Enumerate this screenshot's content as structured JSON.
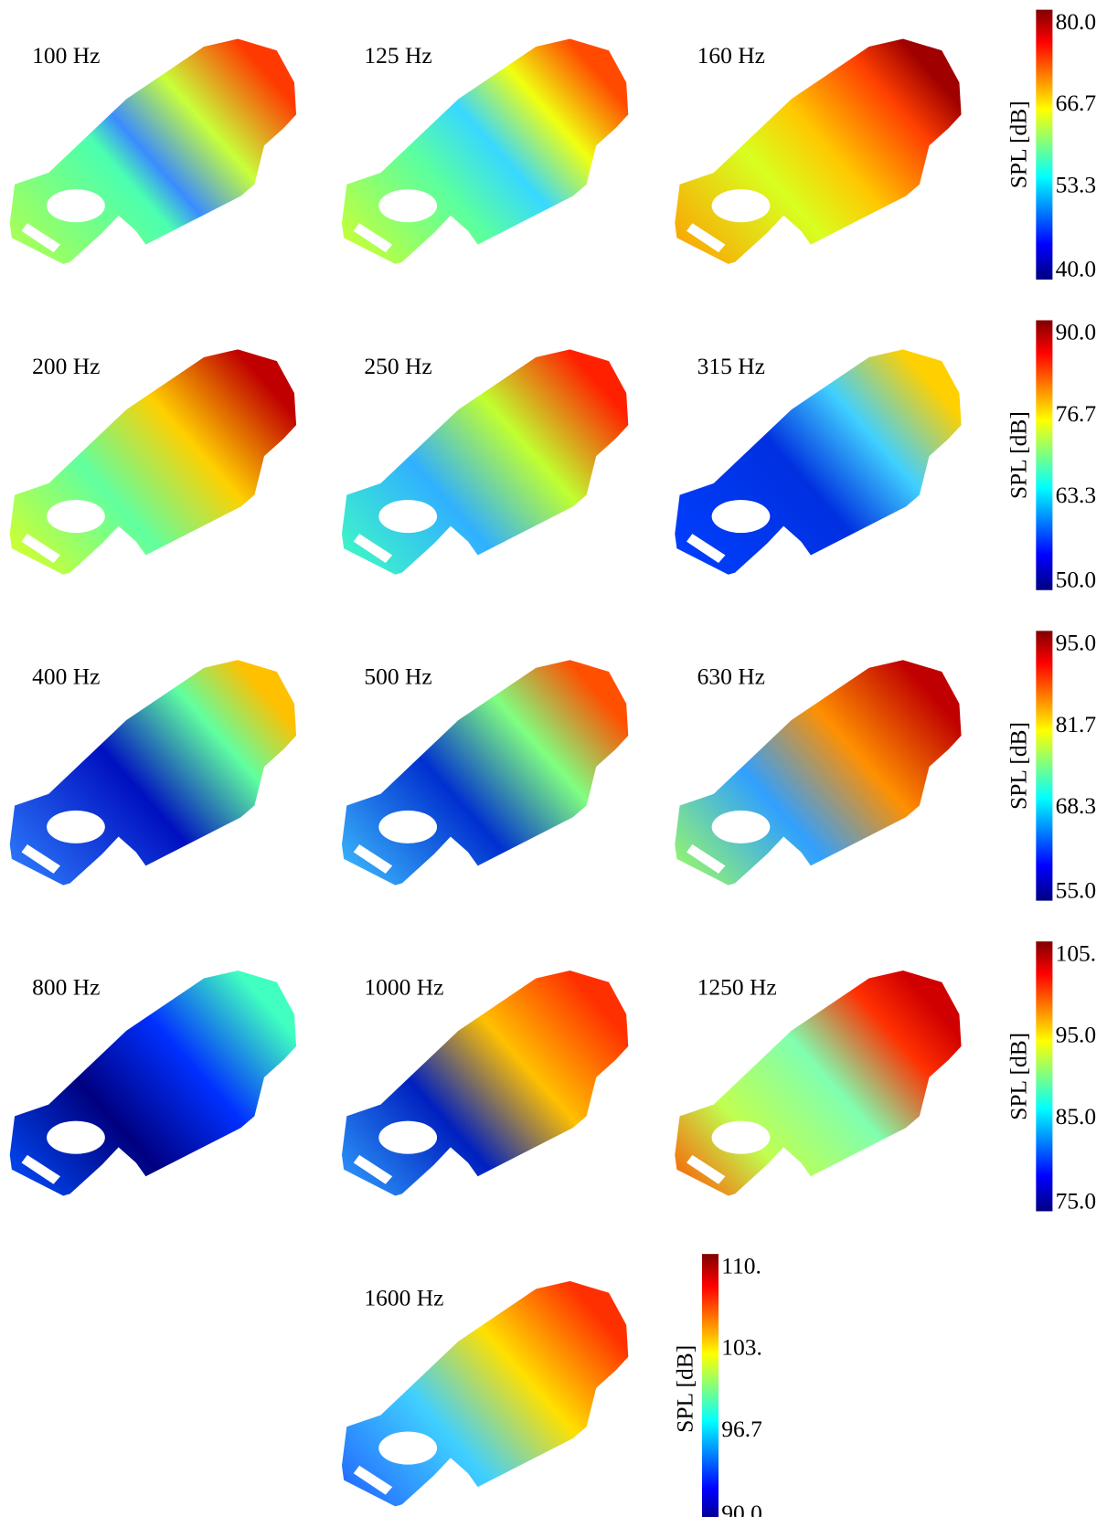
{
  "panels": [
    {
      "label": "100 Hz"
    },
    {
      "label": "125 Hz"
    },
    {
      "label": "160 Hz"
    },
    {
      "label": "200 Hz"
    },
    {
      "label": "250 Hz"
    },
    {
      "label": "315 Hz"
    },
    {
      "label": "400 Hz"
    },
    {
      "label": "500 Hz"
    },
    {
      "label": "630 Hz"
    },
    {
      "label": "800 Hz"
    },
    {
      "label": "1000 Hz"
    },
    {
      "label": "1250 Hz"
    },
    {
      "label": "1600 Hz"
    }
  ],
  "colorbars": [
    {
      "title": "SPL [dB]",
      "ticks": [
        "80.0",
        "66.7",
        "53.3",
        "40.0"
      ]
    },
    {
      "title": "SPL [dB]",
      "ticks": [
        "90.0",
        "76.7",
        "63.3",
        "50.0"
      ]
    },
    {
      "title": "SPL [dB]",
      "ticks": [
        "95.0",
        "81.7",
        "68.3",
        "55.0"
      ]
    },
    {
      "title": "SPL [dB]",
      "ticks": [
        "105.",
        "95.0",
        "85.0",
        "75.0"
      ]
    },
    {
      "title": "SPL [dB]",
      "ticks": [
        "110.",
        "103.",
        "96.7",
        "90.0"
      ]
    }
  ]
}
